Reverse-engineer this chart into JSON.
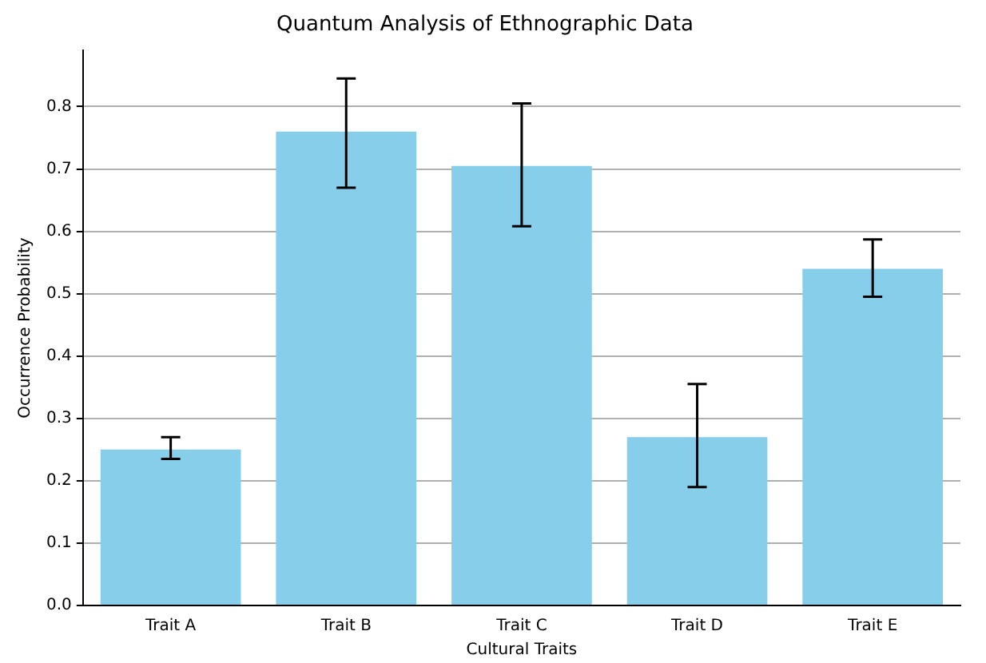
{
  "chart_data": {
    "type": "bar",
    "title": "Quantum Analysis of Ethnographic Data",
    "xlabel": "Cultural Traits",
    "ylabel": "Occurrence Probability",
    "categories": [
      "Trait A",
      "Trait B",
      "Trait C",
      "Trait D",
      "Trait E"
    ],
    "values": [
      0.25,
      0.76,
      0.705,
      0.27,
      0.54
    ],
    "errors": [
      [
        0.235,
        0.27
      ],
      [
        0.67,
        0.845
      ],
      [
        0.608,
        0.805
      ],
      [
        0.19,
        0.355
      ],
      [
        0.495,
        0.587
      ]
    ],
    "color": "#87ceeb",
    "ylim": [
      0,
      0.89
    ],
    "yticks": [
      {
        "value": 0,
        "label": "0.0"
      },
      0.1,
      0.2,
      0.3,
      0.4,
      0.5,
      0.6,
      0.7,
      0.8
    ],
    "grid": "y",
    "legend": false
  }
}
